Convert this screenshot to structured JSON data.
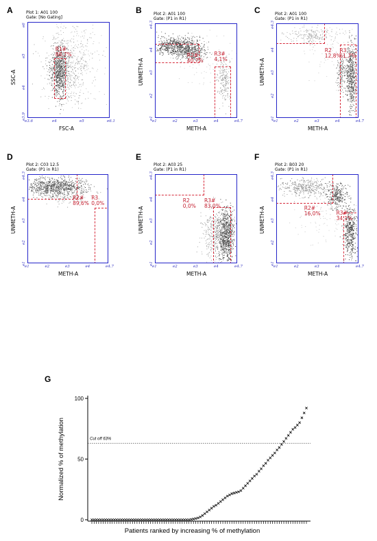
{
  "panels": [
    {
      "letter": "A",
      "line1": "Plot 1: A01 100",
      "line2": "Gate: [No Gating]",
      "xlabel": "FSC-A",
      "ylabel": "SSC-A",
      "xticks": [
        "e3.6",
        "e4",
        "e5",
        "e6.1"
      ],
      "yticks": [
        "e6",
        "e5",
        "e4",
        "e3.9"
      ],
      "gates": [
        {
          "name": "R1#",
          "pct": "88,7%"
        }
      ]
    },
    {
      "letter": "B",
      "line1": "Plot 2: A01 100",
      "line2": "Gate: (P1 in R1)",
      "xlabel": "METH-A",
      "ylabel": "UNMETH-A",
      "xticks": [
        "e1",
        "e2",
        "e3",
        "e4",
        "e4.7"
      ],
      "yticks": [
        "e4.3",
        "e4",
        "e3",
        "e2",
        "e1"
      ],
      "gates": [
        {
          "name": "R2#",
          "pct": "40,7%"
        },
        {
          "name": "R3#",
          "pct": "4,1%"
        }
      ]
    },
    {
      "letter": "C",
      "line1": "Plot 2: A01 100",
      "line2": "Gate: (P1 in R1)",
      "xlabel": "METH-A",
      "ylabel": "UNMETH-A",
      "xticks": [
        "e1",
        "e2",
        "e3",
        "e4",
        "e4.7"
      ],
      "yticks": [
        "e4.3",
        "e4",
        "e3",
        "e2",
        "e1"
      ],
      "gates": [
        {
          "name": "R2",
          "pct": "12,8%"
        },
        {
          "name": "R3",
          "pct": "61,7%"
        }
      ]
    },
    {
      "letter": "D",
      "line1": "Plot 2: C03 12.5",
      "line2": "Gate: (P1 in R1)",
      "xlabel": "METH-A",
      "ylabel": "UNMETH-A",
      "xticks": [
        "e1",
        "e2",
        "e3",
        "e4",
        "e4.7"
      ],
      "yticks": [
        "e4.3",
        "e4",
        "e3",
        "e2",
        "e1"
      ],
      "gates": [
        {
          "name": "R2#",
          "pct": "89,6%"
        },
        {
          "name": "R3",
          "pct": "0,0%"
        }
      ]
    },
    {
      "letter": "E",
      "line1": "Plot 2: A03 25",
      "line2": "Gate: (P1 in R1)",
      "xlabel": "METH-A",
      "ylabel": "UNMETH-A",
      "xticks": [
        "e1",
        "e2",
        "e3",
        "e4",
        "e4.7"
      ],
      "yticks": [
        "e4.3",
        "e4",
        "e3",
        "e2",
        "e1"
      ],
      "gates": [
        {
          "name": "R2",
          "pct": "0,0%"
        },
        {
          "name": "R3#",
          "pct": "83,0%"
        }
      ]
    },
    {
      "letter": "F",
      "line1": "Plot 2: B03 20",
      "line2": "Gate: (P1 in R1)",
      "xlabel": "METH-A",
      "ylabel": "UNMETH-A",
      "xticks": [
        "e1",
        "e2",
        "e3",
        "e4",
        "e4.7"
      ],
      "yticks": [
        "e4.3",
        "e4",
        "e3",
        "e2",
        "e1"
      ],
      "gates": [
        {
          "name": "R2#",
          "pct": "16,0%"
        },
        {
          "name": "R3#",
          "pct": "34,1%"
        }
      ]
    }
  ],
  "chart_data": {
    "letter": "G",
    "type": "scatter",
    "xlabel": "Patients ranked by increasing % of methylation",
    "ylabel": "Normalized % of methylation",
    "ylim": [
      0,
      100
    ],
    "yticks": [
      0,
      50,
      100
    ],
    "cutoff": {
      "value": 63,
      "label": "Cut off 63%"
    },
    "n_patients": 96,
    "values": [
      0,
      0,
      0,
      0,
      0,
      0,
      0,
      0,
      0,
      0,
      0,
      0,
      0,
      0,
      0,
      0,
      0,
      0,
      0,
      0,
      0,
      0,
      0,
      0,
      0,
      0,
      0,
      0,
      0,
      0,
      0,
      0,
      0,
      0,
      0,
      0,
      0,
      0,
      0,
      0,
      0,
      0,
      0,
      0,
      0.3,
      0.6,
      1.0,
      1.5,
      2.3,
      3.5,
      5,
      6.5,
      8,
      9.5,
      11,
      12,
      13.5,
      15,
      16.5,
      18,
      19.5,
      20.5,
      21.5,
      22,
      22.5,
      23,
      24,
      26,
      28,
      30,
      32,
      34,
      36,
      37.5,
      40,
      42,
      44.5,
      46.5,
      49,
      51,
      53,
      55,
      57.5,
      59.5,
      62,
      64.5,
      67,
      69.5,
      72,
      74.5,
      76,
      78,
      80,
      84,
      88,
      92
    ]
  }
}
